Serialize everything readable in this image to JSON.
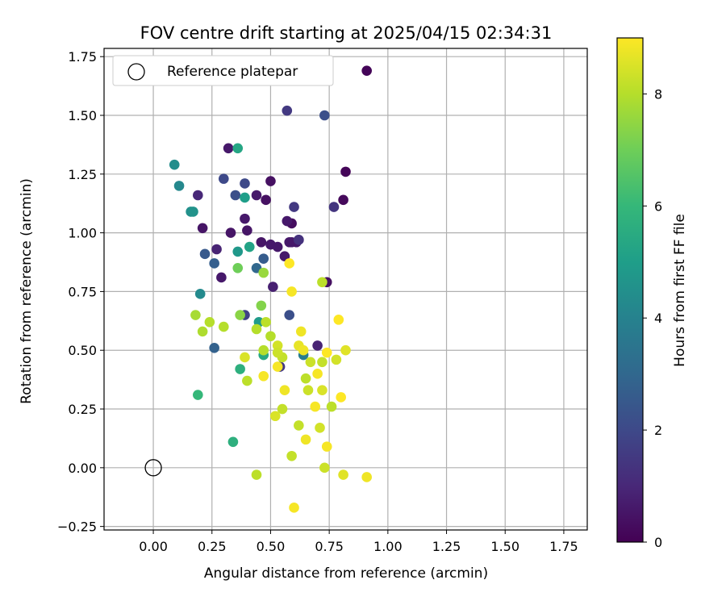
{
  "chart_data": {
    "type": "scatter",
    "title": "FOV centre drift starting at 2025/04/15 02:34:31",
    "xlabel": "Angular distance from reference (arcmin)",
    "ylabel": "Rotation from reference (arcmin)",
    "xlim": [
      -0.21,
      1.85
    ],
    "ylim": [
      -0.265,
      1.785
    ],
    "xticks": [
      "0.00",
      "0.25",
      "0.50",
      "0.75",
      "1.00",
      "1.25",
      "1.50",
      "1.75"
    ],
    "yticks": [
      "−0.25",
      "0.00",
      "0.25",
      "0.50",
      "0.75",
      "1.00",
      "1.25",
      "1.50",
      "1.75"
    ],
    "grid": true,
    "legend": {
      "placement": "top-left",
      "entries": [
        "Reference platepar"
      ]
    },
    "reference_point": {
      "x": 0.0,
      "y": 0.0
    },
    "colorbar": {
      "label": "Hours from first FF file",
      "min": 0,
      "max": 9,
      "ticks": [
        "0",
        "2",
        "4",
        "6",
        "8"
      ],
      "colormap": "viridis"
    },
    "colormap_stops": [
      "#440154",
      "#482878",
      "#3e4989",
      "#31688e",
      "#26828e",
      "#1f9e89",
      "#35b779",
      "#6ece58",
      "#b5de2b",
      "#fde725"
    ],
    "series": [
      {
        "x": [
          0.91,
          0.82,
          0.81,
          0.59,
          0.5,
          0.48,
          0.44,
          0.32,
          0.19,
          0.21,
          0.27,
          0.33,
          0.39,
          0.4,
          0.46,
          0.5,
          0.53,
          0.56,
          0.59,
          0.57,
          0.58,
          0.61,
          0.62,
          0.29,
          0.51,
          0.74,
          0.7,
          0.54
        ],
        "y": [
          1.69,
          1.26,
          1.14,
          1.04,
          1.22,
          1.14,
          1.16,
          1.36,
          1.16,
          1.02,
          0.93,
          1.0,
          1.06,
          1.01,
          0.96,
          0.95,
          0.94,
          0.9,
          0.96,
          1.05,
          0.96,
          0.96,
          0.97,
          0.81,
          0.77,
          0.79,
          0.52,
          0.43
        ],
        "hours": [
          0.1,
          0.1,
          0.2,
          0.3,
          0.4,
          0.4,
          0.6,
          0.6,
          1.0,
          0.5,
          0.9,
          0.5,
          0.6,
          0.5,
          0.5,
          0.6,
          0.6,
          0.6,
          0.6,
          0.6,
          0.6,
          0.6,
          0.9,
          0.6,
          0.8,
          0.4,
          0.9,
          1.5
        ]
      },
      {
        "x": [
          0.57,
          0.73,
          0.6,
          0.77,
          0.3,
          0.35,
          0.39,
          0.22,
          0.26,
          0.47,
          0.44,
          0.39,
          0.58,
          0.26,
          0.62
        ],
        "y": [
          1.52,
          1.5,
          1.11,
          1.11,
          1.23,
          1.16,
          1.21,
          0.91,
          0.87,
          0.89,
          0.85,
          0.65,
          0.65,
          0.51,
          0.97
        ],
        "hours": [
          1.5,
          2.2,
          1.5,
          1.4,
          2.0,
          2.2,
          2.0,
          2.5,
          2.7,
          2.6,
          3.0,
          1.8,
          2.2,
          2.8,
          1.3
        ]
      },
      {
        "x": [
          0.09,
          0.11,
          0.16,
          0.17,
          0.2,
          0.36,
          0.39,
          0.41,
          0.36,
          0.45,
          0.47,
          0.37,
          0.34,
          0.19,
          0.64
        ],
        "y": [
          1.29,
          1.2,
          1.09,
          1.09,
          0.74,
          1.36,
          1.15,
          0.94,
          0.92,
          0.62,
          0.48,
          0.42,
          0.11,
          0.31,
          0.48
        ],
        "hours": [
          4.4,
          4.2,
          4.5,
          4.6,
          4.3,
          5.3,
          5.0,
          5.2,
          4.8,
          4.9,
          5.4,
          5.7,
          5.7,
          6.0,
          3.8
        ]
      },
      {
        "x": [
          0.36,
          0.46,
          0.47,
          0.37,
          0.18,
          0.21,
          0.24,
          0.3,
          0.44,
          0.48,
          0.5,
          0.53,
          0.55,
          0.39,
          0.4,
          0.47,
          0.44,
          0.59,
          0.65,
          0.67,
          0.72,
          0.76,
          0.78,
          0.71,
          0.66,
          0.55,
          0.52,
          0.62,
          0.72,
          0.81,
          0.72,
          0.73,
          0.53
        ],
        "y": [
          0.85,
          0.69,
          0.83,
          0.65,
          0.65,
          0.58,
          0.62,
          0.6,
          0.59,
          0.62,
          0.56,
          0.52,
          0.47,
          0.47,
          0.37,
          0.5,
          -0.03,
          0.05,
          0.38,
          0.45,
          0.45,
          0.26,
          0.46,
          0.17,
          0.33,
          0.25,
          0.22,
          0.18,
          0.79,
          -0.03,
          0.33,
          0.0,
          0.49
        ],
        "hours": [
          7.0,
          7.3,
          7.6,
          7.4,
          7.8,
          7.9,
          8.0,
          8.0,
          8.0,
          8.1,
          8.0,
          8.4,
          8.2,
          8.5,
          8.1,
          8.0,
          8.1,
          8.2,
          8.1,
          8.3,
          8.2,
          8.1,
          8.4,
          8.4,
          8.3,
          8.2,
          8.5,
          8.2,
          8.1,
          8.6,
          8.5,
          8.3,
          8.3
        ]
      },
      {
        "x": [
          0.58,
          0.59,
          0.63,
          0.62,
          0.64,
          0.7,
          0.74,
          0.79,
          0.8,
          0.82,
          0.69,
          0.65,
          0.74,
          0.6,
          0.47,
          0.53,
          0.56,
          0.91
        ],
        "y": [
          0.87,
          0.75,
          0.58,
          0.52,
          0.5,
          0.4,
          0.49,
          0.63,
          0.3,
          0.5,
          0.26,
          0.12,
          0.09,
          -0.17,
          0.39,
          0.43,
          0.33,
          -0.04
        ],
        "hours": [
          9.0,
          8.9,
          8.8,
          8.7,
          8.8,
          8.9,
          9.0,
          9.0,
          9.0,
          8.6,
          8.9,
          8.8,
          8.9,
          8.9,
          8.9,
          8.9,
          8.8,
          8.8
        ]
      }
    ]
  }
}
